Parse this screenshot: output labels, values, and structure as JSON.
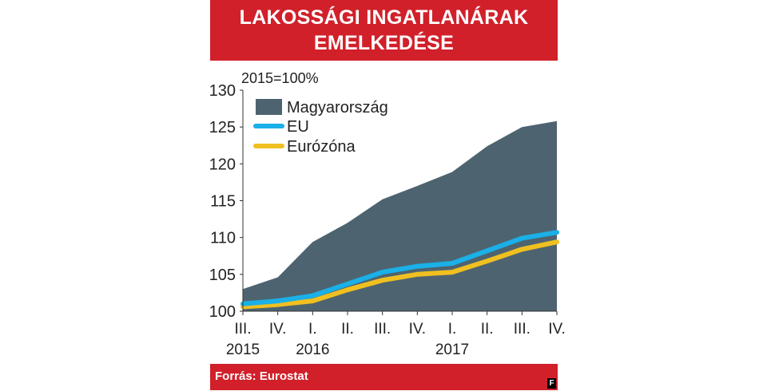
{
  "title": {
    "line1": "LAKOSSÁGI INGATLANÁRAK",
    "line2": "EMELKEDÉSE"
  },
  "source": "Forrás: Eurostat",
  "logo": "F",
  "colors": {
    "header": "#d1202a",
    "area": "#4d6470",
    "eu": "#1ab0e8",
    "eurozone": "#f0c020"
  },
  "chart_data": {
    "type": "area",
    "unit_label": "2015=100%",
    "categories": [
      "III.",
      "IV.",
      "I.",
      "II.",
      "III.",
      "IV.",
      "I.",
      "II.",
      "III.",
      "IV."
    ],
    "year_labels": [
      "2015",
      "",
      "2016",
      "",
      "",
      "",
      "2017",
      "",
      "",
      ""
    ],
    "ylim": [
      100,
      130
    ],
    "yticks": [
      100,
      105,
      110,
      115,
      120,
      125,
      130
    ],
    "legend_position": "top-left",
    "series": [
      {
        "name": "Magyarország",
        "kind": "area",
        "values": [
          103.0,
          104.6,
          109.4,
          112.0,
          115.2,
          117.0,
          118.9,
          122.4,
          125.0,
          125.8
        ]
      },
      {
        "name": "EU",
        "kind": "line",
        "values": [
          101.0,
          101.4,
          102.1,
          103.7,
          105.3,
          106.1,
          106.5,
          108.2,
          109.9,
          110.7
        ]
      },
      {
        "name": "Eurózóna",
        "kind": "line",
        "values": [
          100.6,
          100.9,
          101.4,
          102.9,
          104.2,
          105.0,
          105.3,
          106.8,
          108.4,
          109.4
        ]
      }
    ]
  }
}
